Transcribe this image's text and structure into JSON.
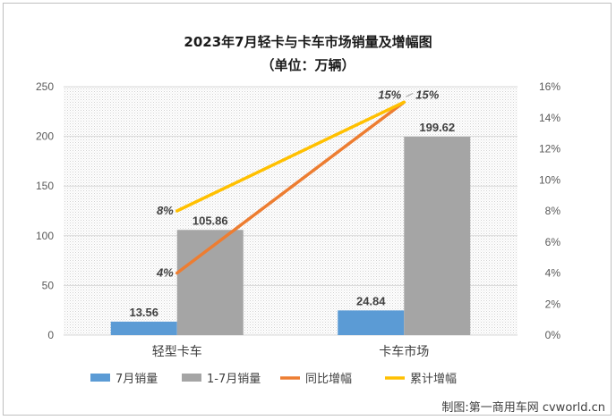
{
  "chart_data": {
    "type": "bar",
    "title": "2023年7月轻卡与卡车市场销量及增幅图",
    "subtitle": "（单位：万辆）",
    "categories": [
      "轻型卡车",
      "卡车市场"
    ],
    "series": [
      {
        "name": "7月销量",
        "kind": "bar",
        "axis": "left",
        "color": "#5b9bd5",
        "values": [
          13.56,
          24.84
        ],
        "labels": [
          "13.56",
          "24.84"
        ]
      },
      {
        "name": "1-7月销量",
        "kind": "bar",
        "axis": "left",
        "color": "#a5a5a5",
        "values": [
          105.86,
          199.62
        ],
        "labels": [
          "105.86",
          "199.62"
        ]
      },
      {
        "name": "同比增幅",
        "kind": "line",
        "axis": "right",
        "color": "#ed7d31",
        "values": [
          4,
          15
        ],
        "labels": [
          "4%",
          "15%"
        ]
      },
      {
        "name": "累计增幅",
        "kind": "line",
        "axis": "right",
        "color": "#ffc000",
        "values": [
          8,
          15
        ],
        "labels": [
          "8%",
          "15%"
        ]
      }
    ],
    "y_left": {
      "min": 0,
      "max": 250,
      "ticks": [
        "0",
        "50",
        "100",
        "150",
        "200",
        "250"
      ]
    },
    "y_right": {
      "min": 0,
      "max": 16,
      "ticks": [
        "0%",
        "2%",
        "4%",
        "6%",
        "8%",
        "10%",
        "12%",
        "14%",
        "16%"
      ]
    },
    "grid": true,
    "legend": "bottom"
  },
  "source": "制图:第一商用车网 cvworld.cn"
}
